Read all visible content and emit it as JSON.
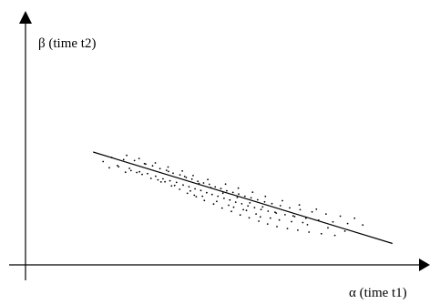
{
  "chart_data": {
    "type": "scatter",
    "title": "",
    "xlabel": "α (time t1)",
    "ylabel": "β (time t2)",
    "grid": false,
    "legend": "none",
    "xlim": [
      0,
      100
    ],
    "ylim": [
      0,
      100
    ],
    "trend_line": {
      "x": [
        17.5,
        95
      ],
      "y": [
        47.5,
        9
      ]
    },
    "series": [
      {
        "name": "",
        "color": "#000000",
        "x": [
          20.1,
          22.3,
          23.8,
          25.4,
          26.9,
          28.2,
          29.5,
          30.8,
          31.6,
          32.9,
          33.7,
          34.8,
          35.6,
          36.5,
          37.4,
          38.2,
          39.1,
          40.0,
          40.8,
          41.6,
          42.3,
          43.1,
          43.9,
          44.6,
          45.4,
          46.1,
          46.9,
          47.6,
          48.3,
          49.1,
          49.8,
          50.6,
          51.4,
          52.1,
          52.9,
          53.7,
          54.4,
          55.2,
          56.0,
          56.8,
          57.6,
          58.4,
          59.3,
          60.1,
          61.0,
          61.9,
          62.8,
          63.8,
          64.9,
          66.0,
          67.2,
          68.4,
          69.7,
          71.1,
          72.6,
          74.2,
          75.9,
          77.8,
          79.6,
          81.5,
          83.4,
          85.2,
          87.3,
          24.1,
          27.3,
          30.2,
          32.5,
          35.1,
          37.8,
          39.9,
          41.9,
          44.2,
          46.3,
          48.7,
          50.9,
          53.3,
          55.6,
          57.9,
          60.4,
          62.7,
          65.1,
          67.8,
          70.5,
          73.4,
          76.6,
          80.1,
          26.2,
          29.4,
          33.6,
          36.9,
          40.6,
          43.4,
          47.2,
          51.8,
          55.1,
          58.8,
          62.1,
          66.5,
          70.9,
          75.3,
          28.8,
          34.3,
          38.6,
          42.7,
          45.8,
          49.5,
          52.6,
          56.4,
          59.7,
          63.4,
          68.9,
          73.0,
          31.1,
          37.0,
          41.2,
          44.9,
          48.0,
          51.1,
          54.8,
          58.1,
          61.4,
          64.6,
          69.3,
          21.7,
          25.9,
          36.1,
          43.7,
          53.9,
          57.2,
          60.8,
          65.7,
          71.8,
          78.3,
          82.7
        ],
        "y": [
          43.5,
          45.2,
          41.8,
          44.3,
          40.6,
          43.9,
          39.2,
          42.6,
          38.4,
          41.7,
          37.3,
          40.5,
          36.2,
          39.8,
          35.4,
          38.6,
          34.7,
          37.9,
          33.6,
          36.8,
          32.9,
          36.1,
          32.0,
          35.2,
          31.3,
          34.5,
          30.4,
          33.9,
          29.6,
          32.8,
          28.9,
          32.1,
          28.0,
          31.2,
          27.3,
          30.5,
          26.4,
          29.8,
          25.7,
          28.9,
          24.8,
          28.2,
          24.1,
          27.4,
          23.3,
          26.5,
          22.6,
          25.8,
          21.8,
          24.9,
          21.1,
          24.0,
          20.3,
          23.2,
          19.6,
          22.3,
          18.8,
          21.4,
          18.1,
          20.5,
          17.4,
          19.6,
          16.8,
          41.3,
          39.7,
          38.1,
          36.4,
          34.9,
          33.2,
          31.8,
          30.1,
          28.7,
          27.1,
          25.6,
          23.9,
          22.5,
          21.0,
          19.8,
          18.4,
          17.2,
          16.1,
          15.3,
          14.6,
          13.8,
          13.1,
          12.4,
          46.1,
          44.8,
          42.9,
          41.2,
          39.5,
          37.6,
          35.9,
          34.0,
          32.3,
          30.6,
          28.8,
          27.0,
          25.2,
          23.4,
          38.9,
          35.8,
          33.4,
          31.1,
          28.9,
          26.7,
          25.1,
          23.2,
          21.4,
          19.7,
          18.2,
          16.9,
          42.4,
          39.3,
          37.2,
          34.3,
          32.5,
          30.2,
          28.4,
          26.1,
          24.4,
          22.2,
          20.6,
          40.9,
          39.0,
          35.0,
          29.3,
          24.3,
          22.9,
          20.2,
          18.9,
          17.8,
          15.6,
          14.2
        ]
      }
    ]
  }
}
